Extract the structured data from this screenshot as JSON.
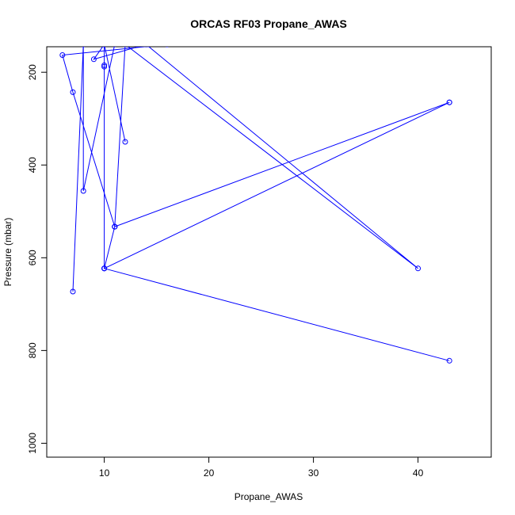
{
  "chart_data": {
    "type": "line",
    "title": "ORCAS RF03 Propane_AWAS",
    "xlabel": "Propane_AWAS",
    "ylabel": "Pressure (mbar)",
    "xlim": [
      4.5,
      47.0
    ],
    "ylim": [
      1030,
      145
    ],
    "y_reversed": true,
    "grid": false,
    "xticks": [
      10,
      20,
      30,
      40
    ],
    "xtick_labels": [
      "10",
      "20",
      "30",
      "40"
    ],
    "yticks": [
      200,
      400,
      600,
      800,
      1000
    ],
    "ytick_labels": [
      "200",
      "400",
      "600",
      "800",
      "1000"
    ],
    "series": [
      {
        "color": "#0000ff",
        "x": [
          7,
          8,
          10,
          10,
          10,
          10,
          43,
          10,
          10,
          11,
          7,
          6,
          16,
          11,
          8,
          8,
          10,
          9,
          14,
          40,
          12,
          11,
          11,
          43,
          43,
          10,
          10,
          12
        ],
        "y": [
          673,
          140,
          140,
          185,
          188,
          623,
          822,
          623,
          623,
          533,
          243,
          163,
          140,
          140,
          456,
          140,
          140,
          172,
          140,
          623,
          140,
          533,
          533,
          265,
          265,
          623,
          140,
          350
        ]
      }
    ]
  }
}
